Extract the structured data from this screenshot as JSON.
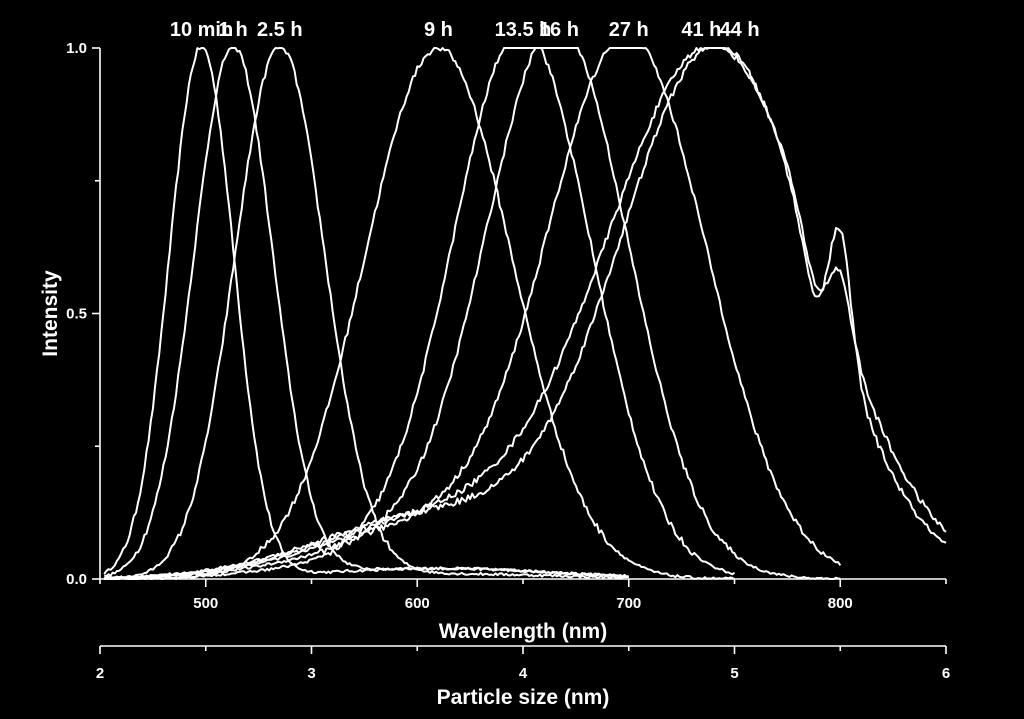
{
  "chart_data": {
    "type": "line",
    "title": "",
    "xlabel": "Wavelength (nm)",
    "ylabel": "Intensity",
    "x2label": "Particle size (nm)",
    "xlim": [
      450,
      850
    ],
    "ylim": [
      0,
      1
    ],
    "x2lim": [
      2,
      6
    ],
    "x_ticks": [
      500,
      600,
      700,
      800
    ],
    "y_ticks": [
      0.0,
      0.5,
      1.0
    ],
    "y_tick_labels": [
      "0.0",
      "0.5",
      "1.0"
    ],
    "x2_ticks": [
      2,
      3,
      4,
      5,
      6
    ],
    "grid": false,
    "legend": "none",
    "color": "#ffffff",
    "series": [
      {
        "label": "10 min",
        "peak": 498,
        "fwhm": 36,
        "range": [
          452,
          700
        ],
        "shoulder": 0.02
      },
      {
        "label": "1 h",
        "peak": 513,
        "fwhm": 44,
        "range": [
          452,
          700
        ],
        "shoulder": 0.02
      },
      {
        "label": "2.5 h",
        "peak": 535,
        "fwhm": 50,
        "range": [
          452,
          700
        ],
        "shoulder": 0.01
      },
      {
        "label": "9 h",
        "peak": 610,
        "fwhm": 82,
        "range": [
          452,
          750
        ],
        "shoulder": 0.0
      },
      {
        "label": "13.5 h",
        "peak": 650,
        "fwhm": 76,
        "range": [
          452,
          750
        ],
        "shoulder": 0.05
      },
      {
        "label": "16 h",
        "peak": 667,
        "fwhm": 78,
        "range": [
          452,
          800
        ],
        "shoulder": 0.08
      },
      {
        "label": "27 h",
        "peak": 700,
        "fwhm": 88,
        "range": [
          452,
          800
        ],
        "shoulder": 0.1
      },
      {
        "label": "41 h",
        "peak": 740,
        "fwhm": 118,
        "range": [
          452,
          850
        ],
        "shoulder": 0.11,
        "dip": 0.4
      },
      {
        "label": "44 h",
        "peak": 742,
        "fwhm": 108,
        "range": [
          452,
          850
        ],
        "shoulder": 0.12,
        "dip": 0.55
      }
    ]
  }
}
